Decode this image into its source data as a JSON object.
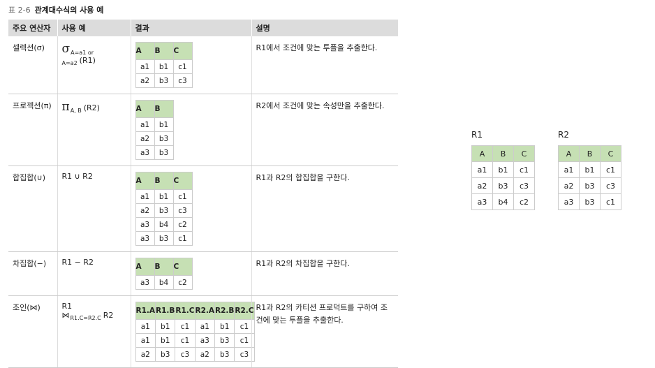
{
  "caption": {
    "label": "표 2-6",
    "title": "관계대수식의 사용 예"
  },
  "table": {
    "headers": [
      "주요 연산자",
      "사용 예",
      "결과",
      "설명"
    ],
    "rows": [
      {
        "operator": "셀렉션(σ)",
        "example": {
          "pre": "σ",
          "sub": "A=a1 or A=a2",
          "post": "(R1)"
        },
        "result": {
          "columns": [
            "A",
            "B",
            "C"
          ],
          "rows": [
            [
              "a1",
              "b1",
              "c1"
            ],
            [
              "a2",
              "b3",
              "c3"
            ]
          ]
        },
        "description": "R1에서 조건에 맞는 투플을 추출한다."
      },
      {
        "operator": "프로젝션(π)",
        "example": {
          "pre": "π",
          "sub": "A, B",
          "post": "(R2)"
        },
        "result": {
          "columns": [
            "A",
            "B"
          ],
          "rows": [
            [
              "a1",
              "b1"
            ],
            [
              "a2",
              "b3"
            ],
            [
              "a3",
              "b3"
            ]
          ]
        },
        "description": "R2에서 조건에 맞는 속성만을 추출한다."
      },
      {
        "operator": "합집합(∪)",
        "example": {
          "pre": "R1 ∪ R2"
        },
        "result": {
          "columns": [
            "A",
            "B",
            "C"
          ],
          "rows": [
            [
              "a1",
              "b1",
              "c1"
            ],
            [
              "a2",
              "b3",
              "c3"
            ],
            [
              "a3",
              "b4",
              "c2"
            ],
            [
              "a3",
              "b3",
              "c1"
            ]
          ]
        },
        "description": "R1과 R2의 합집합을 구한다."
      },
      {
        "operator": "차집합(−)",
        "example": {
          "pre": "R1 − R2"
        },
        "result": {
          "columns": [
            "A",
            "B",
            "C"
          ],
          "rows": [
            [
              "a3",
              "b4",
              "c2"
            ]
          ]
        },
        "description": "R1과 R2의 차집합을 구한다."
      },
      {
        "operator": "조인(⋈)",
        "example": {
          "pre": "R1 ⋈",
          "sub": "R1.C=R2.C",
          "post": "R2"
        },
        "result": {
          "columns": [
            "R1.A",
            "R1.B",
            "R1.C",
            "R2.A",
            "R2.B",
            "R2.C"
          ],
          "rows": [
            [
              "a1",
              "b1",
              "c1",
              "a1",
              "b1",
              "c1"
            ],
            [
              "a1",
              "b1",
              "c1",
              "a3",
              "b3",
              "c1"
            ],
            [
              "a2",
              "b3",
              "c3",
              "a2",
              "b3",
              "c3"
            ]
          ]
        },
        "description": "R1과 R2의 카티션 프로덕트를 구하여 조건에 맞는 투플을 추출한다."
      }
    ]
  },
  "relations": [
    {
      "name": "R1",
      "columns": [
        "A",
        "B",
        "C"
      ],
      "rows": [
        [
          "a1",
          "b1",
          "c1"
        ],
        [
          "a2",
          "b3",
          "c3"
        ],
        [
          "a3",
          "b4",
          "c2"
        ]
      ]
    },
    {
      "name": "R2",
      "columns": [
        "A",
        "B",
        "C"
      ],
      "rows": [
        [
          "a1",
          "b1",
          "c1"
        ],
        [
          "a2",
          "b3",
          "c3"
        ],
        [
          "a3",
          "b3",
          "c1"
        ]
      ]
    }
  ]
}
